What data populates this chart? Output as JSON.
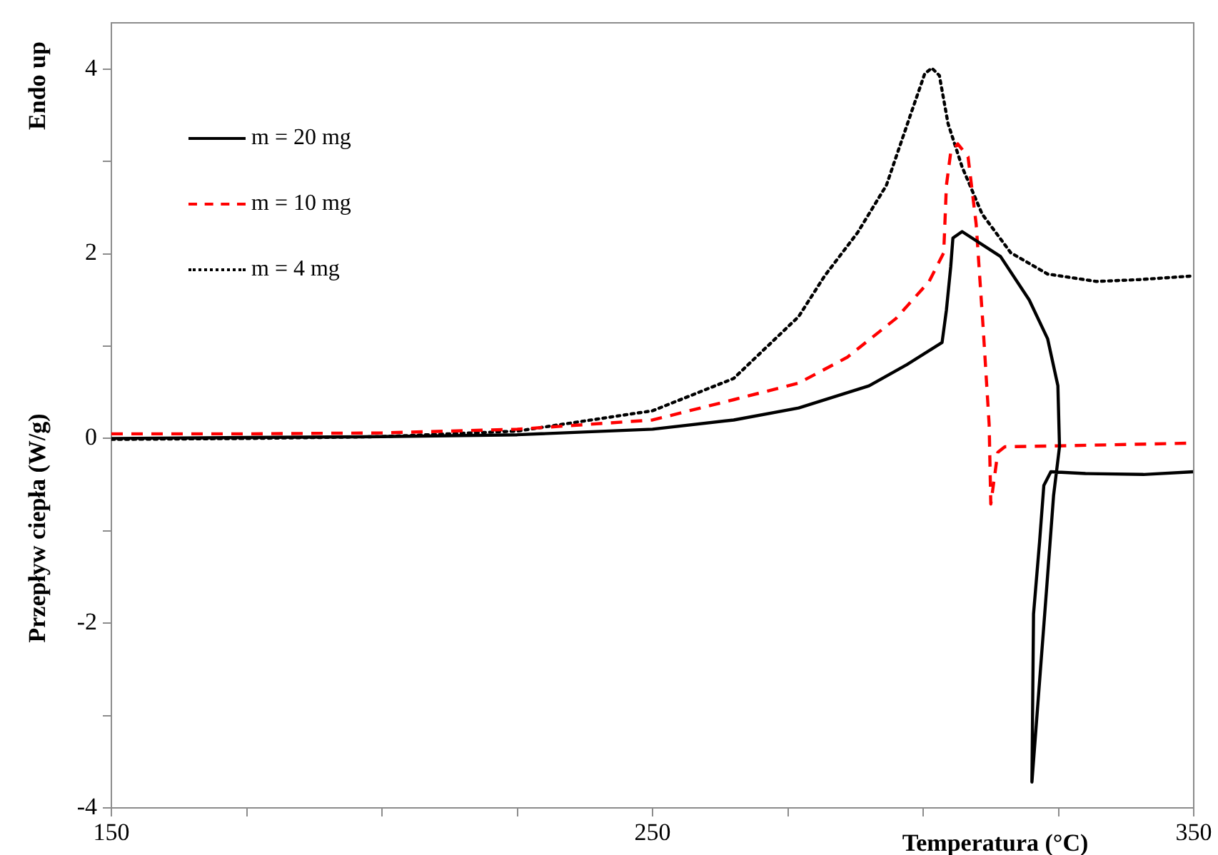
{
  "chart_data": {
    "type": "line",
    "xlabel": "Temperatura (°C)",
    "ylabel": "Przepływ ciepła (W/g)",
    "annotations": [
      "Endo up"
    ],
    "xlim": [
      150,
      350
    ],
    "xticks": [
      150,
      {
        "value": 175,
        "label": null
      },
      {
        "value": 200,
        "label": null
      },
      {
        "value": 225,
        "label": null
      },
      250,
      {
        "value": 275,
        "label": null
      },
      {
        "value": 300,
        "label": null
      },
      {
        "value": 325,
        "label": null
      },
      350
    ],
    "ylim": [
      -4,
      4.5
    ],
    "yticks": [
      -4,
      {
        "value": -3,
        "label": null
      },
      -2,
      {
        "value": -1,
        "label": null
      },
      0,
      {
        "value": 1,
        "label": null
      },
      2,
      {
        "value": 3,
        "label": null
      },
      4
    ],
    "grid": false,
    "legend": "top left",
    "marker": "none",
    "series": [
      {
        "name": "m = 20 mg",
        "color": "#000000",
        "line_style": "solid",
        "x": [
          150,
          175,
          200,
          225,
          250,
          265,
          277,
          290,
          297,
          303.5,
          304.3,
          305.1,
          305.5,
          307.2,
          314.3,
          319.6,
          323,
          324.9,
          325.2,
          324.1,
          322.8,
          320.1,
          320.4,
          321.5,
          322.3,
          323.6,
          330,
          340.7,
          350
        ],
        "values": [
          0,
          0.01,
          0.02,
          0.04,
          0.1,
          0.2,
          0.33,
          0.57,
          0.8,
          1.04,
          1.39,
          1.86,
          2.17,
          2.24,
          1.97,
          1.5,
          1.08,
          0.57,
          -0.09,
          -0.62,
          -1.64,
          -3.72,
          -1.9,
          -1.13,
          -0.51,
          -0.36,
          -0.38,
          -0.39,
          -0.36
        ]
      },
      {
        "name": "m = 10 mg",
        "color": "#ff0000",
        "line_style": "dashed",
        "x": [
          150,
          175,
          200,
          225,
          250,
          265,
          277,
          286,
          295,
          301.1,
          303.8,
          304.3,
          305.1,
          306.4,
          308.3,
          309.8,
          311.1,
          312.2,
          312.5,
          313.8,
          315.1,
          325,
          350
        ],
        "values": [
          0.05,
          0.05,
          0.06,
          0.1,
          0.2,
          0.42,
          0.6,
          0.88,
          1.3,
          1.7,
          2.01,
          2.74,
          3.1,
          3.19,
          3.05,
          2.32,
          1.19,
          0.15,
          -0.71,
          -0.15,
          -0.09,
          -0.08,
          -0.05
        ]
      },
      {
        "name": "m = 4 mg",
        "color": "#000000",
        "line_style": "dotted",
        "x": [
          150,
          175,
          200,
          225,
          250,
          265,
          277,
          281.8,
          287.9,
          293.2,
          297.7,
          300.3,
          301.6,
          303,
          304.6,
          307.2,
          310.9,
          316.2,
          323,
          332,
          340,
          350
        ],
        "values": [
          -0.01,
          0,
          0.02,
          0.08,
          0.3,
          0.65,
          1.32,
          1.76,
          2.23,
          2.74,
          3.51,
          3.95,
          4.01,
          3.93,
          3.41,
          2.94,
          2.43,
          2.01,
          1.78,
          1.7,
          1.72,
          1.76
        ]
      }
    ]
  }
}
